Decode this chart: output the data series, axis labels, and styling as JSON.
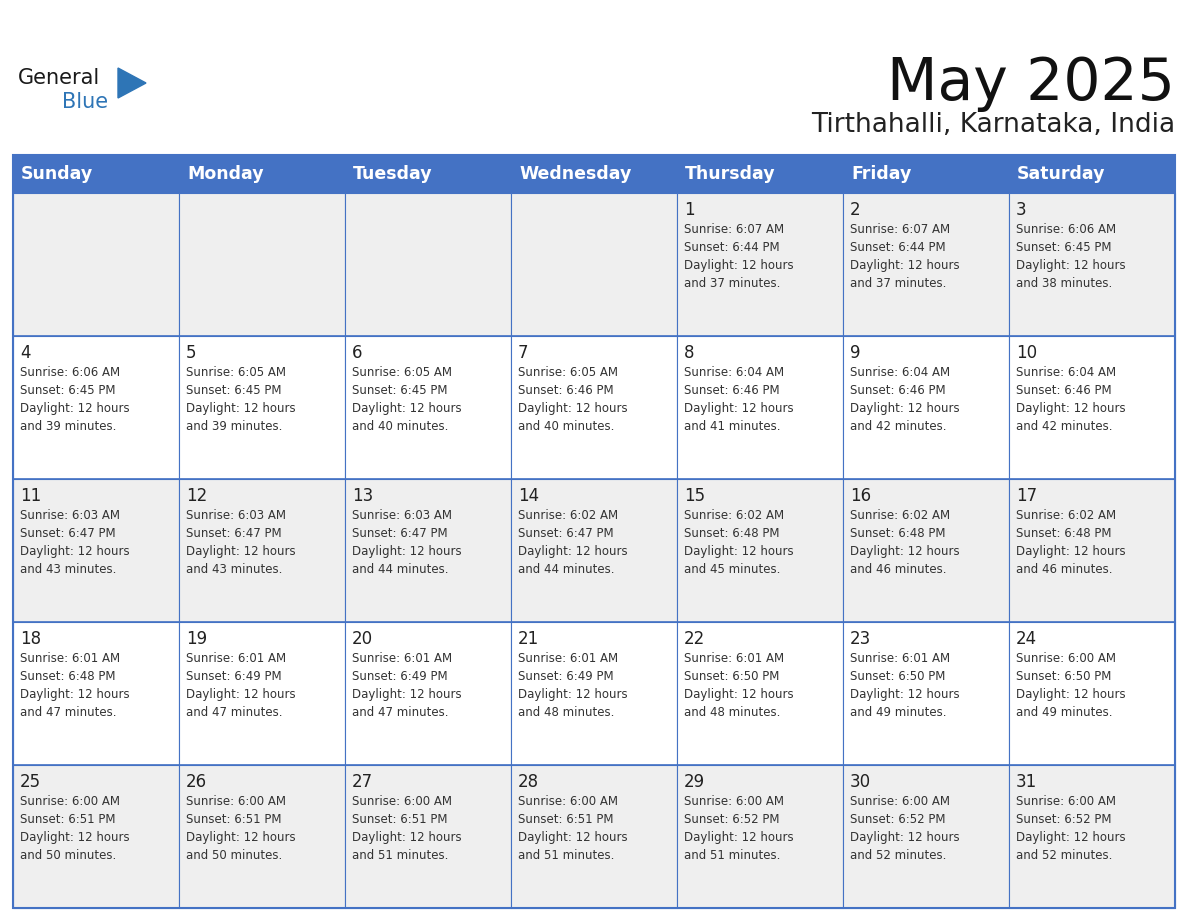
{
  "title": "May 2025",
  "subtitle": "Tirthahalli, Karnataka, India",
  "header_bg": "#4472C4",
  "header_text": "#FFFFFF",
  "days_of_week": [
    "Sunday",
    "Monday",
    "Tuesday",
    "Wednesday",
    "Thursday",
    "Friday",
    "Saturday"
  ],
  "cell_bg_even": "#EFEFEF",
  "cell_bg_odd": "#FFFFFF",
  "cell_border": "#4472C4",
  "day_number_color": "#222222",
  "info_text_color": "#333333",
  "logo_general_color": "#1a1a1a",
  "logo_blue_color": "#2E75B6",
  "calendar_data": [
    [
      null,
      null,
      null,
      null,
      {
        "day": 1,
        "sunrise": "6:07 AM",
        "sunset": "6:44 PM",
        "daylight_h": "12 hours",
        "daylight_m": "and 37 minutes."
      },
      {
        "day": 2,
        "sunrise": "6:07 AM",
        "sunset": "6:44 PM",
        "daylight_h": "12 hours",
        "daylight_m": "and 37 minutes."
      },
      {
        "day": 3,
        "sunrise": "6:06 AM",
        "sunset": "6:45 PM",
        "daylight_h": "12 hours",
        "daylight_m": "and 38 minutes."
      }
    ],
    [
      {
        "day": 4,
        "sunrise": "6:06 AM",
        "sunset": "6:45 PM",
        "daylight_h": "12 hours",
        "daylight_m": "and 39 minutes."
      },
      {
        "day": 5,
        "sunrise": "6:05 AM",
        "sunset": "6:45 PM",
        "daylight_h": "12 hours",
        "daylight_m": "and 39 minutes."
      },
      {
        "day": 6,
        "sunrise": "6:05 AM",
        "sunset": "6:45 PM",
        "daylight_h": "12 hours",
        "daylight_m": "and 40 minutes."
      },
      {
        "day": 7,
        "sunrise": "6:05 AM",
        "sunset": "6:46 PM",
        "daylight_h": "12 hours",
        "daylight_m": "and 40 minutes."
      },
      {
        "day": 8,
        "sunrise": "6:04 AM",
        "sunset": "6:46 PM",
        "daylight_h": "12 hours",
        "daylight_m": "and 41 minutes."
      },
      {
        "day": 9,
        "sunrise": "6:04 AM",
        "sunset": "6:46 PM",
        "daylight_h": "12 hours",
        "daylight_m": "and 42 minutes."
      },
      {
        "day": 10,
        "sunrise": "6:04 AM",
        "sunset": "6:46 PM",
        "daylight_h": "12 hours",
        "daylight_m": "and 42 minutes."
      }
    ],
    [
      {
        "day": 11,
        "sunrise": "6:03 AM",
        "sunset": "6:47 PM",
        "daylight_h": "12 hours",
        "daylight_m": "and 43 minutes."
      },
      {
        "day": 12,
        "sunrise": "6:03 AM",
        "sunset": "6:47 PM",
        "daylight_h": "12 hours",
        "daylight_m": "and 43 minutes."
      },
      {
        "day": 13,
        "sunrise": "6:03 AM",
        "sunset": "6:47 PM",
        "daylight_h": "12 hours",
        "daylight_m": "and 44 minutes."
      },
      {
        "day": 14,
        "sunrise": "6:02 AM",
        "sunset": "6:47 PM",
        "daylight_h": "12 hours",
        "daylight_m": "and 44 minutes."
      },
      {
        "day": 15,
        "sunrise": "6:02 AM",
        "sunset": "6:48 PM",
        "daylight_h": "12 hours",
        "daylight_m": "and 45 minutes."
      },
      {
        "day": 16,
        "sunrise": "6:02 AM",
        "sunset": "6:48 PM",
        "daylight_h": "12 hours",
        "daylight_m": "and 46 minutes."
      },
      {
        "day": 17,
        "sunrise": "6:02 AM",
        "sunset": "6:48 PM",
        "daylight_h": "12 hours",
        "daylight_m": "and 46 minutes."
      }
    ],
    [
      {
        "day": 18,
        "sunrise": "6:01 AM",
        "sunset": "6:48 PM",
        "daylight_h": "12 hours",
        "daylight_m": "and 47 minutes."
      },
      {
        "day": 19,
        "sunrise": "6:01 AM",
        "sunset": "6:49 PM",
        "daylight_h": "12 hours",
        "daylight_m": "and 47 minutes."
      },
      {
        "day": 20,
        "sunrise": "6:01 AM",
        "sunset": "6:49 PM",
        "daylight_h": "12 hours",
        "daylight_m": "and 47 minutes."
      },
      {
        "day": 21,
        "sunrise": "6:01 AM",
        "sunset": "6:49 PM",
        "daylight_h": "12 hours",
        "daylight_m": "and 48 minutes."
      },
      {
        "day": 22,
        "sunrise": "6:01 AM",
        "sunset": "6:50 PM",
        "daylight_h": "12 hours",
        "daylight_m": "and 48 minutes."
      },
      {
        "day": 23,
        "sunrise": "6:01 AM",
        "sunset": "6:50 PM",
        "daylight_h": "12 hours",
        "daylight_m": "and 49 minutes."
      },
      {
        "day": 24,
        "sunrise": "6:00 AM",
        "sunset": "6:50 PM",
        "daylight_h": "12 hours",
        "daylight_m": "and 49 minutes."
      }
    ],
    [
      {
        "day": 25,
        "sunrise": "6:00 AM",
        "sunset": "6:51 PM",
        "daylight_h": "12 hours",
        "daylight_m": "and 50 minutes."
      },
      {
        "day": 26,
        "sunrise": "6:00 AM",
        "sunset": "6:51 PM",
        "daylight_h": "12 hours",
        "daylight_m": "and 50 minutes."
      },
      {
        "day": 27,
        "sunrise": "6:00 AM",
        "sunset": "6:51 PM",
        "daylight_h": "12 hours",
        "daylight_m": "and 51 minutes."
      },
      {
        "day": 28,
        "sunrise": "6:00 AM",
        "sunset": "6:51 PM",
        "daylight_h": "12 hours",
        "daylight_m": "and 51 minutes."
      },
      {
        "day": 29,
        "sunrise": "6:00 AM",
        "sunset": "6:52 PM",
        "daylight_h": "12 hours",
        "daylight_m": "and 51 minutes."
      },
      {
        "day": 30,
        "sunrise": "6:00 AM",
        "sunset": "6:52 PM",
        "daylight_h": "12 hours",
        "daylight_m": "and 52 minutes."
      },
      {
        "day": 31,
        "sunrise": "6:00 AM",
        "sunset": "6:52 PM",
        "daylight_h": "12 hours",
        "daylight_m": "and 52 minutes."
      }
    ]
  ]
}
